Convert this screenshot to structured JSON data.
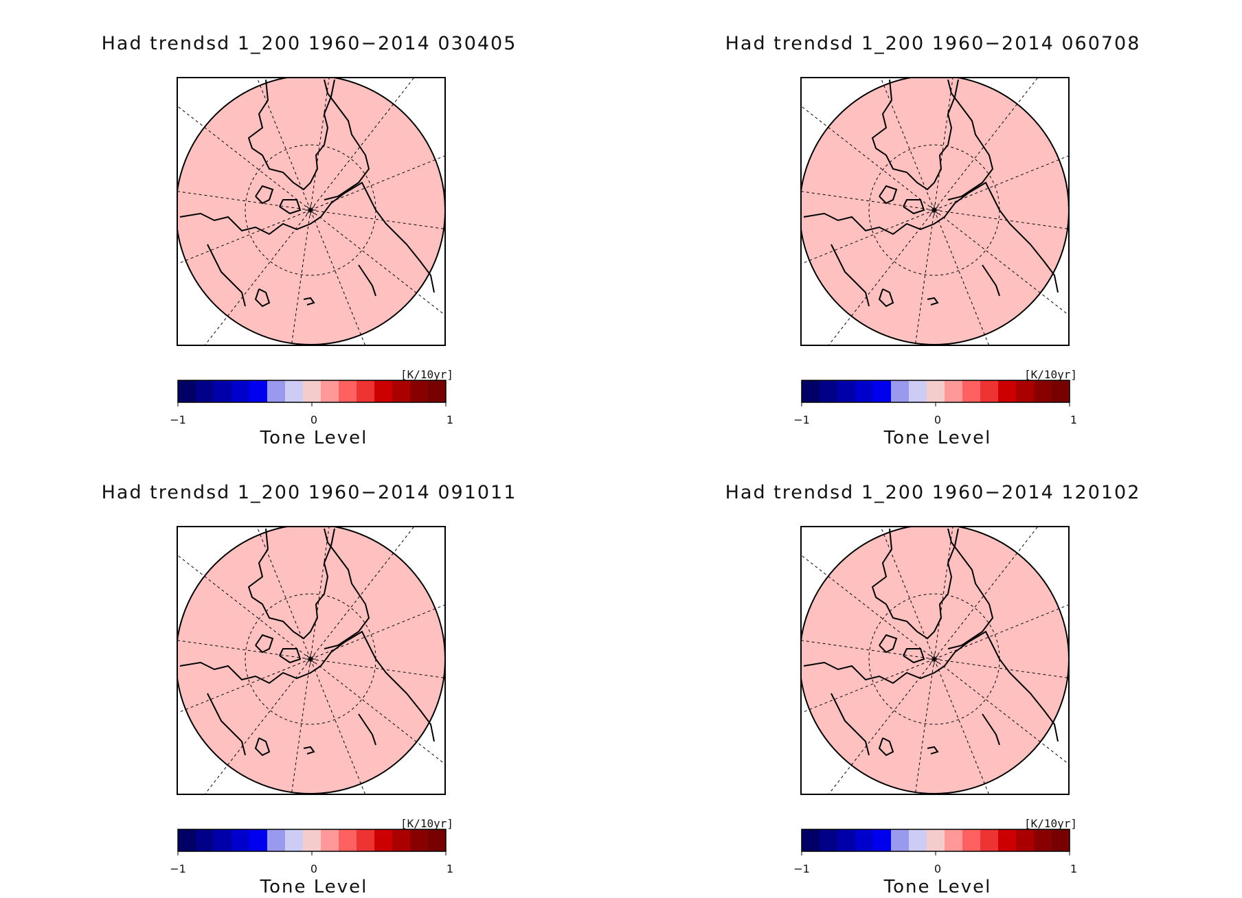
{
  "panels": [
    {
      "title": "Had trendsd 1_200 1960−2014 030405"
    },
    {
      "title": "Had trendsd 1_200 1960−2014 060708"
    },
    {
      "title": "Had trendsd 1_200 1960−2014 091011"
    },
    {
      "title": "Had trendsd 1_200 1960−2014 120102"
    }
  ],
  "colorbar": {
    "unit": "[K/10yr]",
    "ticks": [
      "−1",
      "0",
      "1"
    ],
    "label": "Tone Level",
    "colors": [
      "#000066",
      "#000088",
      "#0000aa",
      "#0000cc",
      "#0000ee",
      "#9999ee",
      "#ccccf5",
      "#f5cccc",
      "#ff9999",
      "#ff6060",
      "#ee3333",
      "#cc0000",
      "#aa0000",
      "#880000",
      "#770000"
    ]
  },
  "map": {
    "fill_color": "#ffc0c0",
    "projection": "north polar stereographic"
  }
}
